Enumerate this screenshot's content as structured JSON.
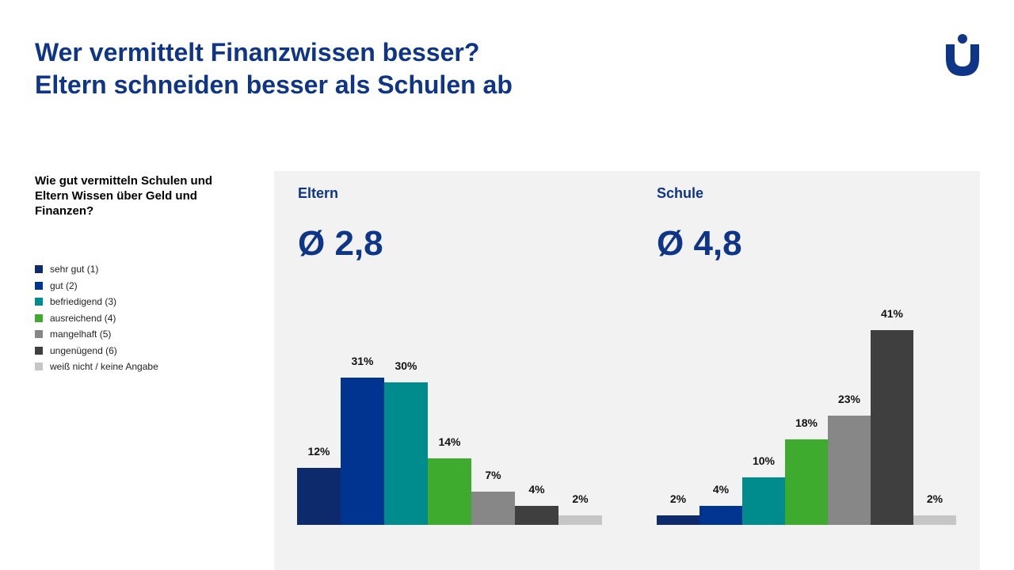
{
  "title": {
    "line1": "Wer vermittelt Finanzwissen besser?",
    "line2": "Eltern schneiden besser als Schulen ab"
  },
  "logo": {
    "name": "brand-logo-u",
    "color": "#0f3587"
  },
  "question": "Wie gut vermitteln Schulen und Eltern Wissen über Geld und Finanzen?",
  "legend": [
    {
      "label": "sehr gut (1)",
      "color": "#0d2a6c"
    },
    {
      "label": "gut (2)",
      "color": "#003491"
    },
    {
      "label": "befriedigend (3)",
      "color": "#008c8c"
    },
    {
      "label": "ausreichend (4)",
      "color": "#3eab2f"
    },
    {
      "label": "mangelhaft (5)",
      "color": "#878787"
    },
    {
      "label": "ungenügend (6)",
      "color": "#3f3f3f"
    },
    {
      "label": "weiß nicht / keine Angabe",
      "color": "#c6c6c6"
    }
  ],
  "chart_data": [
    {
      "type": "bar",
      "title": "Eltern",
      "subtitle": "Ø 2,8",
      "categories": [
        "sehr gut (1)",
        "gut (2)",
        "befriedigend (3)",
        "ausreichend (4)",
        "mangelhaft (5)",
        "ungenügend (6)",
        "weiß nicht / keine Angabe"
      ],
      "values": [
        12,
        31,
        30,
        14,
        7,
        4,
        2
      ],
      "value_labels": [
        "12%",
        "31%",
        "30%",
        "14%",
        "7%",
        "4%",
        "2%"
      ],
      "colors": [
        "#0d2a6c",
        "#003491",
        "#008c8c",
        "#3eab2f",
        "#878787",
        "#3f3f3f",
        "#c6c6c6"
      ],
      "ylim": [
        0,
        45
      ],
      "grid": false
    },
    {
      "type": "bar",
      "title": "Schule",
      "subtitle": "Ø 4,8",
      "categories": [
        "sehr gut (1)",
        "gut (2)",
        "befriedigend (3)",
        "ausreichend (4)",
        "mangelhaft (5)",
        "ungenügend (6)",
        "weiß nicht / keine Angabe"
      ],
      "values": [
        2,
        4,
        10,
        18,
        23,
        41,
        2
      ],
      "value_labels": [
        "2%",
        "4%",
        "10%",
        "18%",
        "23%",
        "41%",
        "2%"
      ],
      "colors": [
        "#0d2a6c",
        "#003491",
        "#008c8c",
        "#3eab2f",
        "#878787",
        "#3f3f3f",
        "#c6c6c6"
      ],
      "ylim": [
        0,
        45
      ],
      "grid": false
    }
  ]
}
